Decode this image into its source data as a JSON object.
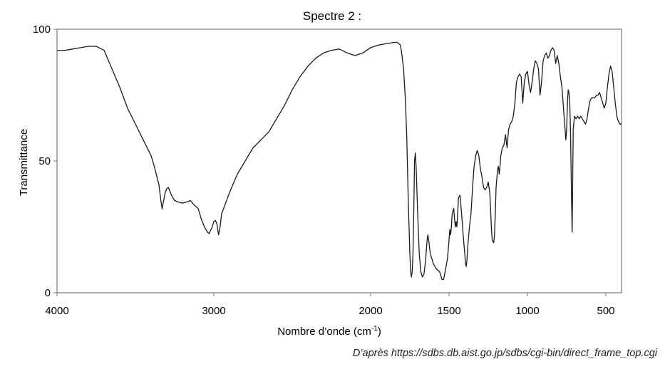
{
  "chart_data": {
    "type": "line",
    "title": "Spectre 2 :",
    "xlabel": "Nombre d’onde (cm",
    "xlabel_sup": "-1",
    "xlabel_suffix": ")",
    "ylabel": "Transmittance",
    "xlim": [
      4000,
      400
    ],
    "ylim": [
      0,
      100
    ],
    "x_ticks": [
      4000,
      3000,
      2000,
      1500,
      1000,
      500
    ],
    "x_tick_labels": [
      "4000",
      "3000",
      "2000",
      "1500",
      "1000",
      "500"
    ],
    "y_ticks": [
      0,
      50,
      100
    ],
    "y_tick_labels": [
      "0",
      "50",
      "100"
    ],
    "grid": false,
    "series": [
      {
        "points": [
          [
            4000,
            92
          ],
          [
            3950,
            92
          ],
          [
            3900,
            92.5
          ],
          [
            3850,
            93
          ],
          [
            3800,
            93.5
          ],
          [
            3750,
            93.5
          ],
          [
            3700,
            92
          ],
          [
            3650,
            85
          ],
          [
            3600,
            78
          ],
          [
            3550,
            70
          ],
          [
            3500,
            64
          ],
          [
            3450,
            58
          ],
          [
            3400,
            52
          ],
          [
            3380,
            48
          ],
          [
            3350,
            41
          ],
          [
            3340,
            36
          ],
          [
            3330,
            31.8
          ],
          [
            3320,
            35
          ],
          [
            3310,
            38
          ],
          [
            3300,
            39.5
          ],
          [
            3290,
            40
          ],
          [
            3270,
            37
          ],
          [
            3250,
            35
          ],
          [
            3230,
            34.5
          ],
          [
            3200,
            34
          ],
          [
            3170,
            34.5
          ],
          [
            3150,
            35
          ],
          [
            3120,
            33
          ],
          [
            3100,
            32
          ],
          [
            3080,
            28
          ],
          [
            3060,
            25
          ],
          [
            3040,
            23
          ],
          [
            3030,
            22.5
          ],
          [
            3010,
            25
          ],
          [
            3000,
            27
          ],
          [
            2990,
            27.5
          ],
          [
            2980,
            26
          ],
          [
            2970,
            22
          ],
          [
            2960,
            25
          ],
          [
            2950,
            30
          ],
          [
            2900,
            38
          ],
          [
            2850,
            45
          ],
          [
            2800,
            50
          ],
          [
            2750,
            55
          ],
          [
            2700,
            58
          ],
          [
            2650,
            61
          ],
          [
            2600,
            66
          ],
          [
            2550,
            71
          ],
          [
            2500,
            77
          ],
          [
            2450,
            82
          ],
          [
            2400,
            86
          ],
          [
            2350,
            89
          ],
          [
            2300,
            91
          ],
          [
            2250,
            92
          ],
          [
            2200,
            92.5
          ],
          [
            2150,
            91
          ],
          [
            2100,
            90
          ],
          [
            2050,
            91
          ],
          [
            2000,
            93
          ],
          [
            1950,
            94
          ],
          [
            1900,
            94.5
          ],
          [
            1850,
            95
          ],
          [
            1830,
            95
          ],
          [
            1810,
            94
          ],
          [
            1800,
            90
          ],
          [
            1790,
            85
          ],
          [
            1780,
            75
          ],
          [
            1770,
            60
          ],
          [
            1760,
            35
          ],
          [
            1750,
            15
          ],
          [
            1745,
            8
          ],
          [
            1740,
            6
          ],
          [
            1735,
            8
          ],
          [
            1730,
            15
          ],
          [
            1725,
            30
          ],
          [
            1720,
            50
          ],
          [
            1715,
            53
          ],
          [
            1710,
            48
          ],
          [
            1700,
            30
          ],
          [
            1690,
            15
          ],
          [
            1680,
            8
          ],
          [
            1670,
            6
          ],
          [
            1660,
            7
          ],
          [
            1650,
            12
          ],
          [
            1640,
            20
          ],
          [
            1635,
            22
          ],
          [
            1630,
            20
          ],
          [
            1620,
            15
          ],
          [
            1600,
            11
          ],
          [
            1580,
            9
          ],
          [
            1560,
            8
          ],
          [
            1545,
            5
          ],
          [
            1535,
            5
          ],
          [
            1525,
            8
          ],
          [
            1510,
            13
          ],
          [
            1500,
            20
          ],
          [
            1495,
            24
          ],
          [
            1490,
            22
          ],
          [
            1485,
            25
          ],
          [
            1480,
            30
          ],
          [
            1475,
            31
          ],
          [
            1470,
            32
          ],
          [
            1465,
            28
          ],
          [
            1460,
            25
          ],
          [
            1455,
            27
          ],
          [
            1450,
            25
          ],
          [
            1445,
            30
          ],
          [
            1440,
            36
          ],
          [
            1430,
            37
          ],
          [
            1420,
            30
          ],
          [
            1410,
            22
          ],
          [
            1400,
            15
          ],
          [
            1395,
            11
          ],
          [
            1390,
            10
          ],
          [
            1385,
            13
          ],
          [
            1380,
            18
          ],
          [
            1370,
            25
          ],
          [
            1360,
            30
          ],
          [
            1350,
            40
          ],
          [
            1340,
            48
          ],
          [
            1330,
            52
          ],
          [
            1320,
            54
          ],
          [
            1310,
            52
          ],
          [
            1300,
            47
          ],
          [
            1290,
            44
          ],
          [
            1280,
            40
          ],
          [
            1270,
            39
          ],
          [
            1260,
            40
          ],
          [
            1250,
            42
          ],
          [
            1240,
            38
          ],
          [
            1230,
            25
          ],
          [
            1225,
            20
          ],
          [
            1215,
            19
          ],
          [
            1210,
            22
          ],
          [
            1205,
            30
          ],
          [
            1200,
            40
          ],
          [
            1190,
            47
          ],
          [
            1185,
            48
          ],
          [
            1180,
            45
          ],
          [
            1175,
            48
          ],
          [
            1170,
            52
          ],
          [
            1160,
            55
          ],
          [
            1150,
            56
          ],
          [
            1140,
            60
          ],
          [
            1130,
            55
          ],
          [
            1120,
            62
          ],
          [
            1110,
            64
          ],
          [
            1100,
            65
          ],
          [
            1090,
            67
          ],
          [
            1080,
            72
          ],
          [
            1070,
            80
          ],
          [
            1060,
            82
          ],
          [
            1050,
            83
          ],
          [
            1040,
            82
          ],
          [
            1030,
            72
          ],
          [
            1020,
            80
          ],
          [
            1010,
            83
          ],
          [
            1000,
            84
          ],
          [
            990,
            79
          ],
          [
            980,
            76
          ],
          [
            970,
            80
          ],
          [
            960,
            85
          ],
          [
            950,
            88
          ],
          [
            940,
            87
          ],
          [
            930,
            85
          ],
          [
            920,
            75
          ],
          [
            910,
            80
          ],
          [
            900,
            88
          ],
          [
            890,
            90
          ],
          [
            880,
            91
          ],
          [
            870,
            89
          ],
          [
            860,
            90
          ],
          [
            850,
            92
          ],
          [
            840,
            93
          ],
          [
            830,
            92
          ],
          [
            820,
            87
          ],
          [
            810,
            90
          ],
          [
            800,
            87
          ],
          [
            790,
            82
          ],
          [
            780,
            78
          ],
          [
            770,
            70
          ],
          [
            760,
            62
          ],
          [
            755,
            58
          ],
          [
            750,
            62
          ],
          [
            745,
            72
          ],
          [
            740,
            77
          ],
          [
            735,
            76
          ],
          [
            730,
            72
          ],
          [
            725,
            60
          ],
          [
            720,
            40
          ],
          [
            715,
            23
          ],
          [
            712,
            40
          ],
          [
            708,
            62
          ],
          [
            700,
            67
          ],
          [
            690,
            66
          ],
          [
            680,
            67
          ],
          [
            670,
            66
          ],
          [
            660,
            67
          ],
          [
            650,
            66
          ],
          [
            640,
            65
          ],
          [
            630,
            64
          ],
          [
            620,
            66
          ],
          [
            610,
            70
          ],
          [
            600,
            73
          ],
          [
            590,
            74
          ],
          [
            580,
            74
          ],
          [
            570,
            74
          ],
          [
            560,
            75
          ],
          [
            550,
            75
          ],
          [
            540,
            76
          ],
          [
            530,
            74
          ],
          [
            520,
            72
          ],
          [
            510,
            70
          ],
          [
            500,
            72
          ],
          [
            490,
            78
          ],
          [
            480,
            83
          ],
          [
            470,
            86
          ],
          [
            460,
            84
          ],
          [
            450,
            78
          ],
          [
            440,
            72
          ],
          [
            430,
            67
          ],
          [
            420,
            65
          ],
          [
            410,
            64
          ],
          [
            400,
            64
          ]
        ]
      }
    ]
  },
  "source_text": "D’après https://sdbs.db.aist.go.jp/sdbs/cgi-bin/direct_frame_top.cgi",
  "colors": {
    "line": "#1a1a1a",
    "axis": "#777777",
    "text": "#111111"
  }
}
